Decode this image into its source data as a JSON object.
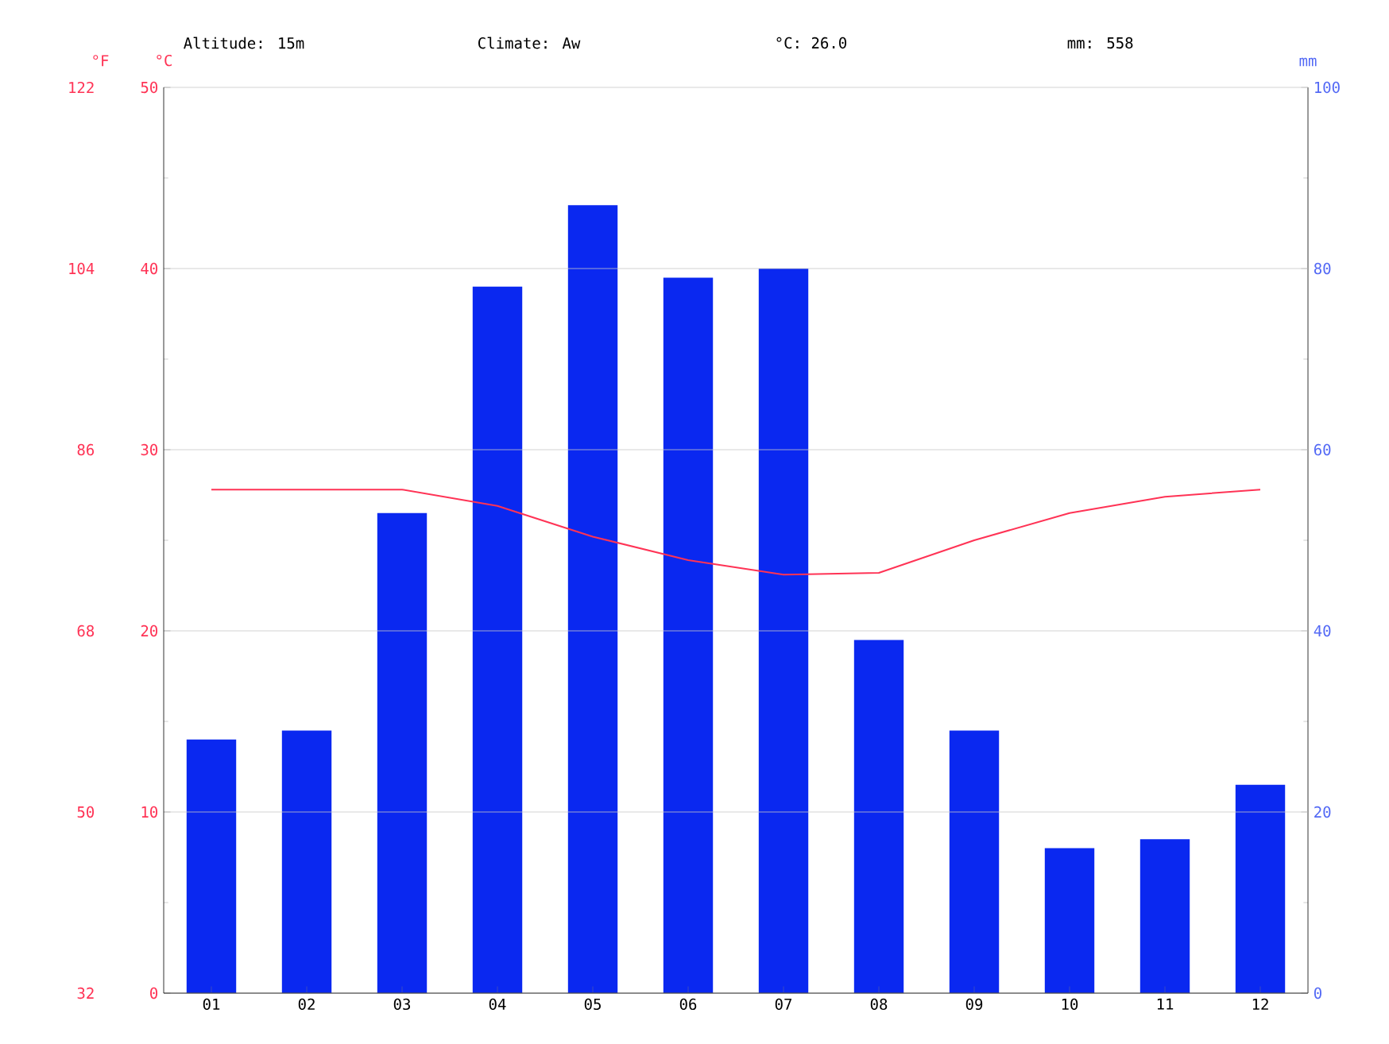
{
  "chart_data": {
    "type": "bar",
    "annotations": [
      "Altitude: 15m",
      "Climate: Aw",
      "°C: 26.0",
      "mm: 558"
    ],
    "categories": [
      "01",
      "02",
      "03",
      "04",
      "05",
      "06",
      "07",
      "08",
      "09",
      "10",
      "11",
      "12"
    ],
    "series": [
      {
        "axis": "y2",
        "color": "#0a28f0",
        "values": [
          28,
          29,
          53,
          78,
          87,
          79,
          80,
          39,
          29,
          16,
          17,
          23
        ]
      },
      {
        "type": "line",
        "color": "#ff3355",
        "values": [
          27.8,
          27.8,
          27.8,
          26.9,
          25.2,
          23.9,
          23.1,
          23.2,
          25.0,
          26.5,
          27.4,
          27.8
        ]
      }
    ],
    "ylabel": "°C",
    "ylim": [
      0,
      50
    ],
    "yticks": [
      0,
      10,
      20,
      30,
      40,
      50
    ],
    "y2label": "mm",
    "y2lim": [
      0,
      100
    ],
    "y2ticks": [
      0,
      20,
      40,
      60,
      80,
      100
    ],
    "y3label": "°F",
    "y3lim": [
      32,
      122
    ],
    "y3ticks": [
      32,
      50,
      68,
      86,
      104,
      122
    ],
    "grid": "y"
  }
}
